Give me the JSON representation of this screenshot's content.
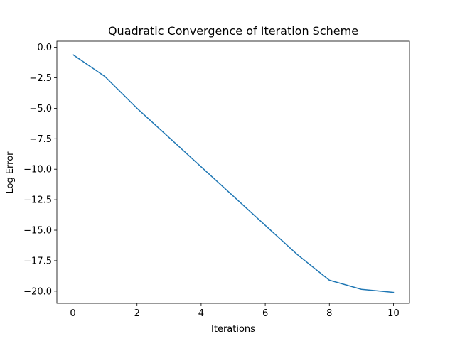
{
  "chart_data": {
    "type": "line",
    "title": "Quadratic Convergence of Iteration Scheme",
    "xlabel": "Iterations",
    "ylabel": "Log Error",
    "xlim": [
      -0.5,
      10.5
    ],
    "ylim": [
      -21.0,
      0.5
    ],
    "x_ticks": [
      0,
      2,
      4,
      6,
      8,
      10
    ],
    "x_tick_labels": [
      "0",
      "2",
      "4",
      "6",
      "8",
      "10"
    ],
    "y_ticks": [
      0.0,
      -2.5,
      -5.0,
      -7.5,
      -10.0,
      -12.5,
      -15.0,
      -17.5,
      -20.0
    ],
    "y_tick_labels": [
      "0.0",
      "−2.5",
      "−5.0",
      "−7.5",
      "−10.0",
      "−12.5",
      "−15.0",
      "−17.5",
      "−20.0"
    ],
    "grid": false,
    "legend": "none",
    "series": [
      {
        "color": "#1f77b4",
        "x": [
          0,
          1,
          2,
          3,
          4,
          5,
          6,
          7,
          8,
          9,
          10
        ],
        "y": [
          -0.6,
          -2.4,
          -5.0,
          -7.4,
          -9.8,
          -12.2,
          -14.6,
          -17.0,
          -19.1,
          -19.85,
          -20.1
        ]
      }
    ]
  }
}
